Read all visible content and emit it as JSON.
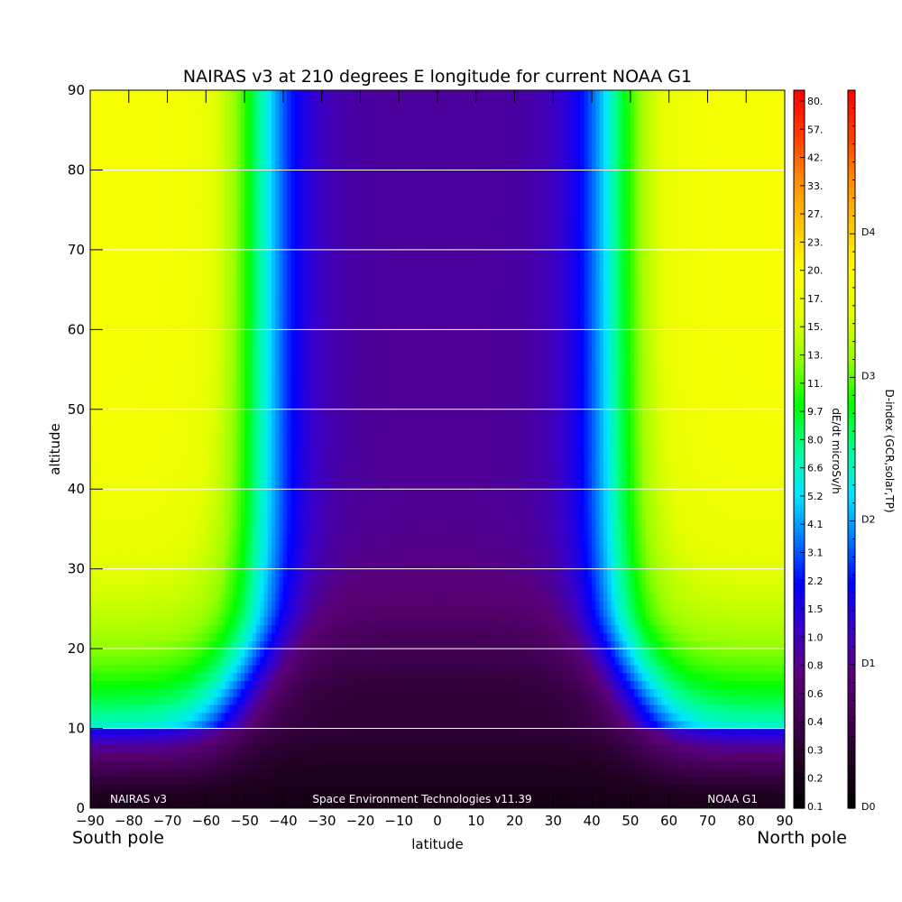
{
  "chart_data": {
    "type": "heatmap",
    "title": "NAIRAS v3 at 210 degrees E longitude for current NOAA G1",
    "xlabel": "latitude",
    "ylabel": "altitude",
    "x_ticks": [
      -90,
      -80,
      -70,
      -60,
      -50,
      -40,
      -30,
      -20,
      -10,
      0,
      10,
      20,
      30,
      40,
      50,
      60,
      70,
      80,
      90
    ],
    "y_ticks": [
      0,
      10,
      20,
      30,
      40,
      50,
      60,
      70,
      80,
      90
    ],
    "xlim": [
      -90,
      90
    ],
    "ylim": [
      0,
      90
    ],
    "x_end_labels": {
      "left": "South pole",
      "right": "North pole"
    },
    "grid": "horizontal lines at y ticks",
    "annotations": {
      "left": "NAIRAS v3",
      "center": "Space Environment Technologies v11.39",
      "right": "NOAA G1"
    },
    "colorbar_dose": {
      "label": "dE/dt microSv/h",
      "ticks": [
        "0.1",
        "0.2",
        "0.3",
        "0.4",
        "0.6",
        "0.8",
        "1.0",
        "1.5",
        "2.2",
        "3.1",
        "4.1",
        "5.2",
        "6.6",
        "8.0",
        "9.7",
        "11.",
        "13.",
        "15.",
        "17.",
        "20.",
        "23.",
        "27.",
        "33.",
        "42.",
        "57.",
        "80."
      ]
    },
    "colorbar_dindex": {
      "label": "D-index (GCR,solar,TP)",
      "ticks": [
        "D0",
        "D1",
        "D2",
        "D3",
        "D4"
      ],
      "tick_positions": [
        0,
        1,
        2,
        3,
        4
      ],
      "range": [
        0,
        5
      ]
    },
    "z_description": "dose rate vs latitude and altitude; values expressed as colorbar position (0 = 0.1, 1 = 80.)",
    "z_model": {
      "cutoff_latitude_deg": 45,
      "cutoff_latitude_low_alt_deg": 55,
      "polar_plateau_level": 0.73,
      "equatorial_min_level": 0.0,
      "layer_floor_altitude_km": 10
    },
    "colors": {
      "scale": [
        "#000000",
        "#200020",
        "#400050",
        "#5a0078",
        "#3a00c8",
        "#0000ff",
        "#0078ff",
        "#00e6ff",
        "#00ff96",
        "#00ff00",
        "#96ff00",
        "#e6ff00",
        "#ffff00",
        "#ffc800",
        "#ff8c00",
        "#ff3c00",
        "#ff0000"
      ]
    }
  }
}
